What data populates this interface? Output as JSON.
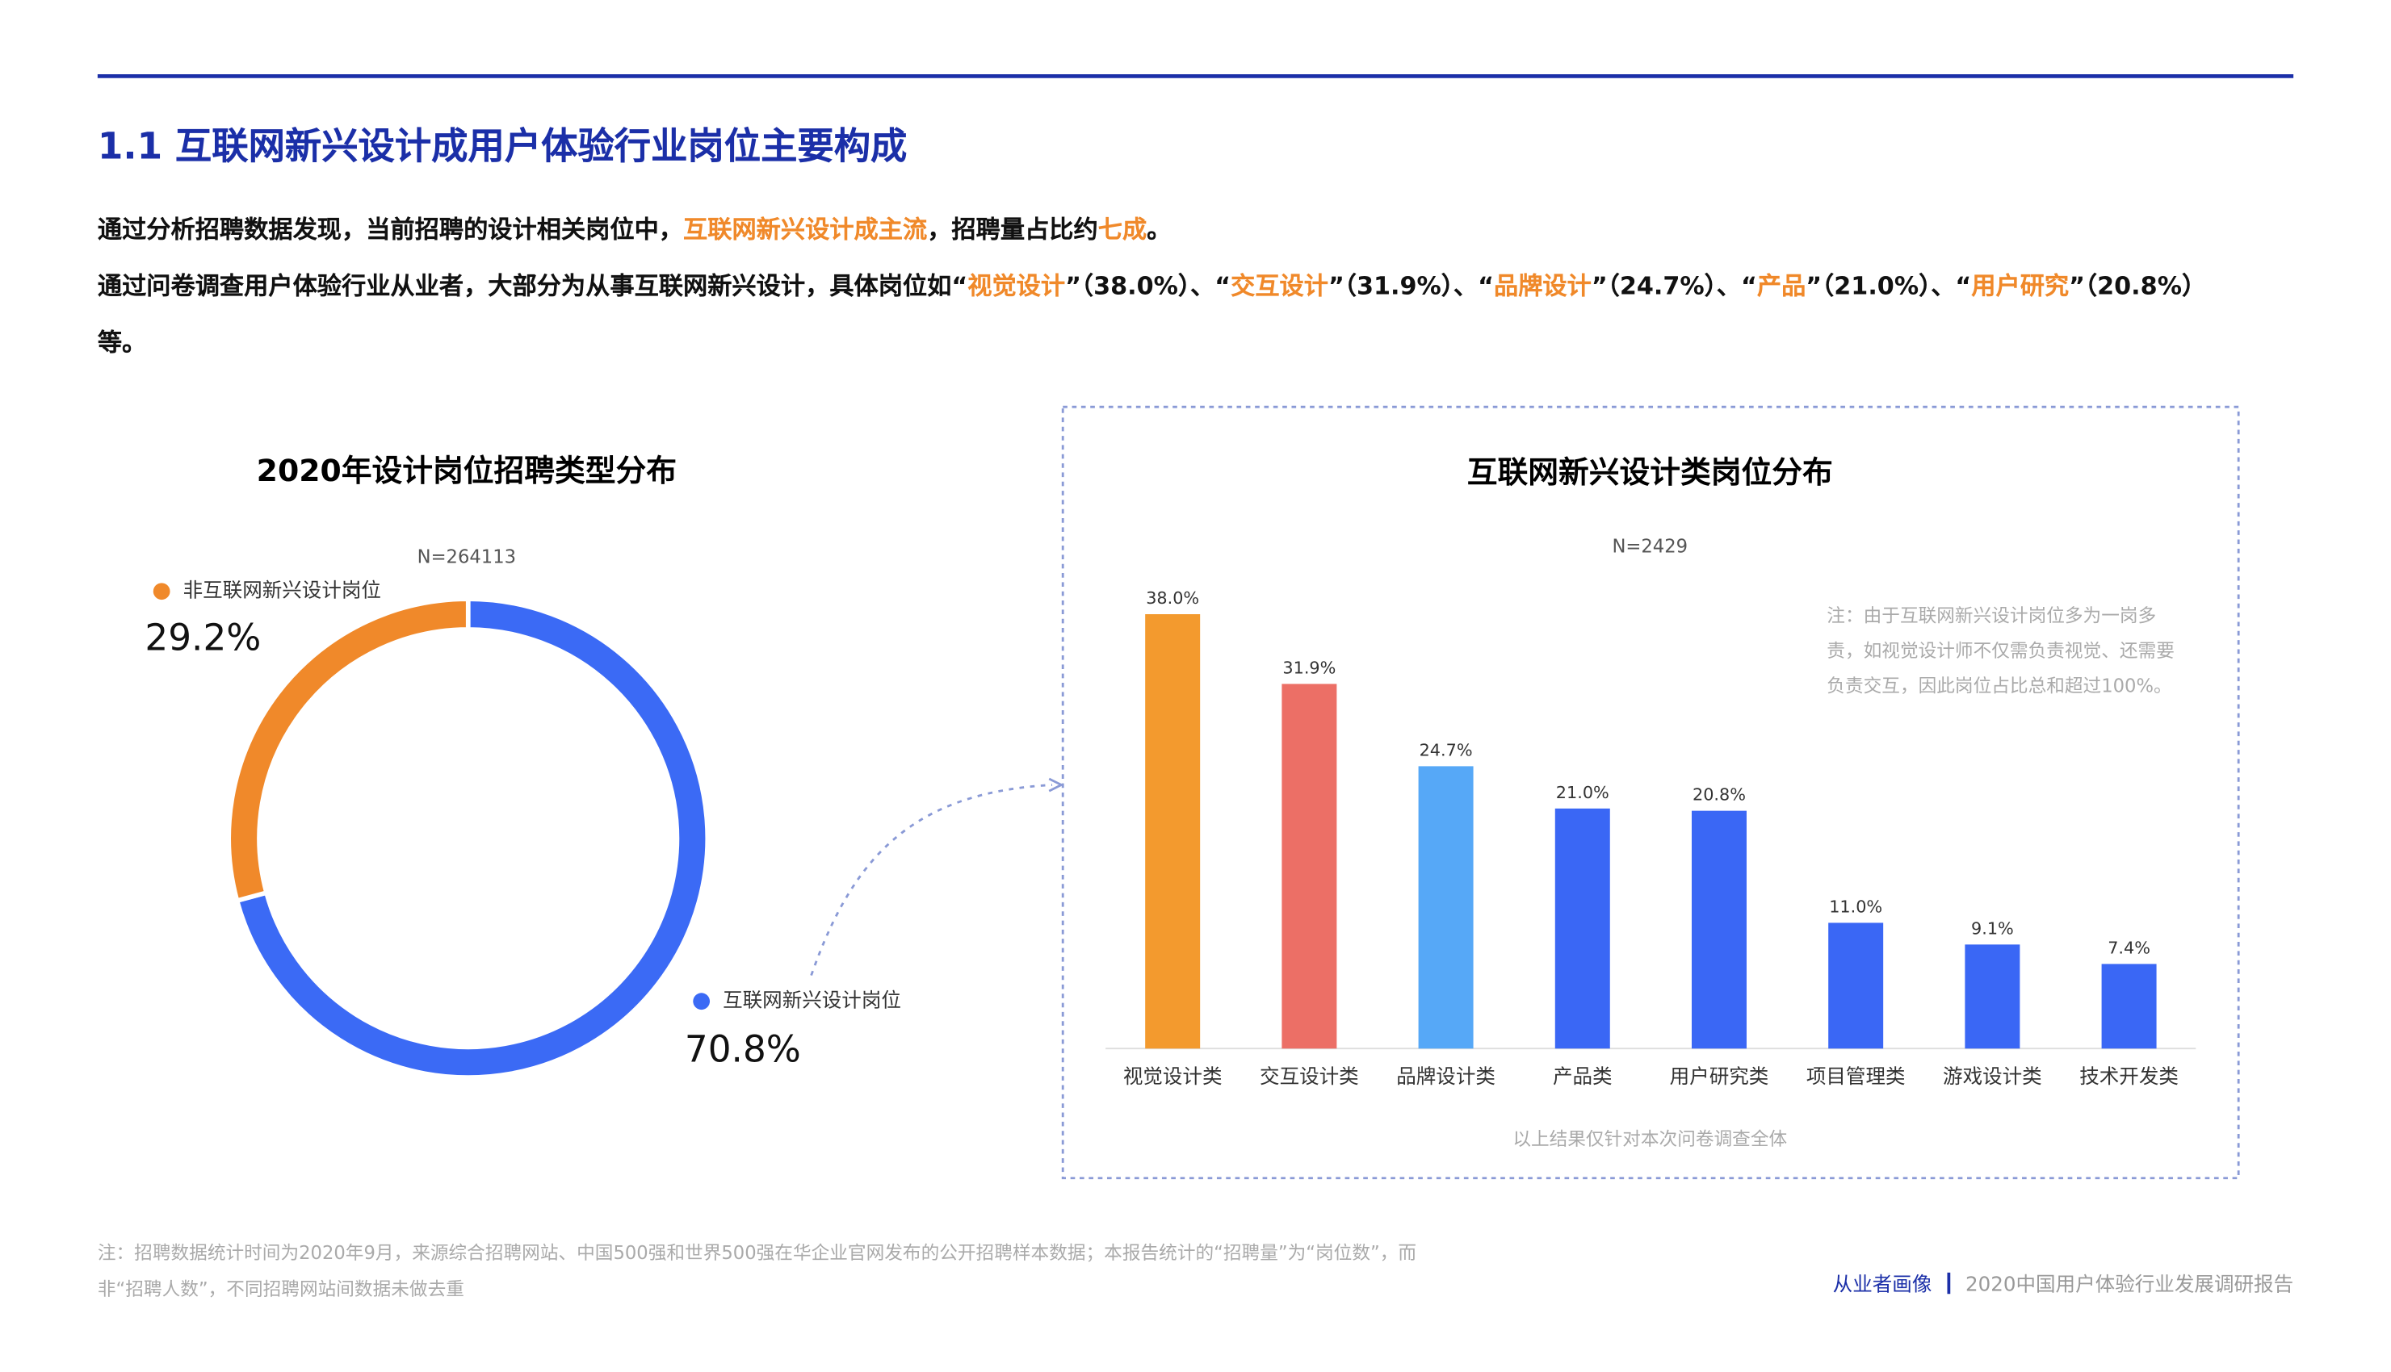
{
  "header": {
    "section": "1.1 互联网新兴设计成用户体验行业岗位主要构成"
  },
  "intro": [
    [
      {
        "text": "通过分析招聘数据发现，当前招聘的设计相关岗位中，",
        "highlight": false
      },
      {
        "text": "互联网新兴设计成主流",
        "highlight": true
      },
      {
        "text": "，招聘量占比约",
        "highlight": false
      },
      {
        "text": "七成",
        "highlight": true
      },
      {
        "text": "。",
        "highlight": false
      }
    ],
    [
      {
        "text": "通过问卷调查用户体验行业从业者，大部分为从事互联网新兴设计，具体岗位如“",
        "highlight": false
      },
      {
        "text": "视觉设计",
        "highlight": true
      },
      {
        "text": "”（38.0%）、“",
        "highlight": false
      },
      {
        "text": "交互设计",
        "highlight": true
      },
      {
        "text": "”（31.9%）、“",
        "highlight": false
      },
      {
        "text": "品牌设计",
        "highlight": true
      },
      {
        "text": "”（24.7%）、“",
        "highlight": false
      },
      {
        "text": "产品",
        "highlight": true
      },
      {
        "text": "”（21.0%）、“",
        "highlight": false
      },
      {
        "text": "用户研究",
        "highlight": true
      },
      {
        "text": "”（20.8%）等。",
        "highlight": false
      }
    ]
  ],
  "chart_data": [
    {
      "type": "pie",
      "title": "2020年设计岗位招聘类型分布",
      "subtitle": "N=264113",
      "categories": [
        "互联网新兴设计岗位",
        "非互联网新兴设计岗位"
      ],
      "values": [
        70.8,
        29.2
      ],
      "value_labels": [
        "70.8%",
        "29.2%"
      ],
      "colors": [
        "#3b6af5",
        "#f0892a"
      ],
      "donut": true
    },
    {
      "type": "bar",
      "title": "互联网新兴设计类岗位分布",
      "subtitle": "N=2429",
      "categories": [
        "视觉设计类",
        "交互设计类",
        "品牌设计类",
        "产品类",
        "用户研究类",
        "项目管理类",
        "游戏设计类",
        "技术开发类"
      ],
      "values": [
        38.0,
        31.9,
        24.7,
        21.0,
        20.8,
        11.0,
        9.1,
        7.4
      ],
      "value_labels": [
        "38.0%",
        "31.9%",
        "24.7%",
        "21.0%",
        "20.8%",
        "11.0%",
        "9.1%",
        "7.4%"
      ],
      "colors": [
        "#f39a2e",
        "#ec6f66",
        "#56a8f7",
        "#3a67f5",
        "#3a67f5",
        "#3a67f5",
        "#3a67f5",
        "#3a67f5"
      ],
      "ylim": [
        0,
        40
      ],
      "annotation": "注：由于互联网新兴设计岗位多为一岗多责，如视觉设计师不仅需负责视觉、还需要负责交互，因此岗位占比总和超过100%。",
      "caption": "以上结果仅针对本次问卷调查全体"
    }
  ],
  "footer": {
    "note": "注：招聘数据统计时间为2020年9月，来源综合招聘网站、中国500强和世界500强在华企业官网发布的公开招聘样本数据；本报告统计的“招聘量”为“岗位数”，而非“招聘人数”，不同招聘网站间数据未做去重",
    "section": "从业者画像",
    "report": "2020中国用户体验行业发展调研报告"
  }
}
